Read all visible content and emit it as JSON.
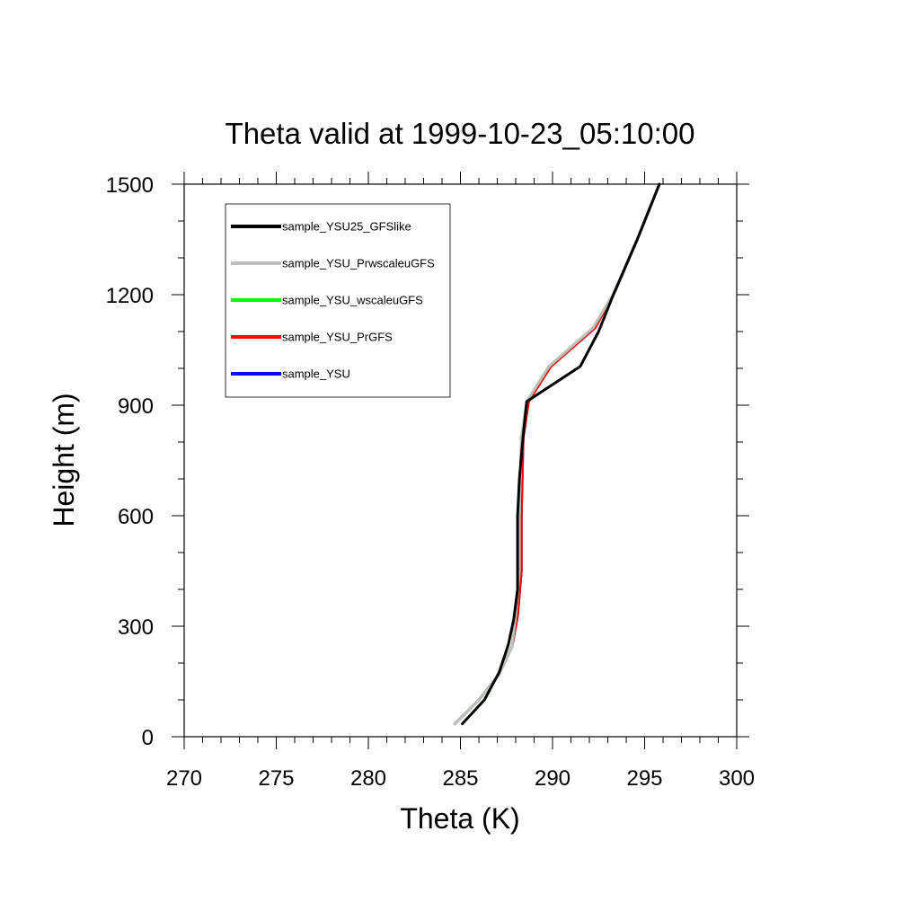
{
  "chart_data": {
    "type": "line",
    "title": "Theta valid at 1999-10-23_05:10:00",
    "xlabel": "Theta (K)",
    "ylabel": "Height (m)",
    "xlim": [
      270,
      300
    ],
    "ylim": [
      0,
      1500
    ],
    "x_ticks": [
      "270",
      "275",
      "280",
      "285",
      "290",
      "295",
      "300"
    ],
    "y_ticks": [
      "0",
      "300",
      "600",
      "900",
      "1200",
      "1500"
    ],
    "grid": false,
    "legend_position": "top-left",
    "series": [
      {
        "name": "sample_YSU",
        "color": "#0000ff",
        "x": [
          284.7,
          286.0,
          287.1,
          287.8,
          288.1,
          288.3,
          288.3,
          288.4,
          288.6,
          289.9,
          292.3,
          293.4,
          294.6,
          295.8
        ],
        "y": [
          35,
          100,
          170,
          245,
          330,
          450,
          600,
          810,
          910,
          1005,
          1110,
          1210,
          1350,
          1500
        ]
      },
      {
        "name": "sample_YSU_PrGFS",
        "color": "#ff0000",
        "x": [
          284.7,
          286.0,
          287.1,
          287.8,
          288.1,
          288.3,
          288.3,
          288.4,
          288.7,
          289.9,
          292.3,
          293.4,
          294.6,
          295.8
        ],
        "y": [
          35,
          100,
          170,
          245,
          330,
          450,
          600,
          810,
          910,
          1005,
          1110,
          1210,
          1350,
          1500
        ]
      },
      {
        "name": "sample_YSU_wscaleuGFS",
        "color": "#00ff00",
        "x": [
          284.7,
          286.0,
          287.1,
          287.8,
          288.0,
          288.2,
          288.2,
          288.3,
          288.6,
          289.8,
          292.2,
          293.4,
          294.6,
          295.8
        ],
        "y": [
          35,
          100,
          170,
          245,
          330,
          450,
          600,
          810,
          910,
          1005,
          1110,
          1210,
          1350,
          1500
        ]
      },
      {
        "name": "sample_YSU_PrwscaleuGFS",
        "color": "#bebebe",
        "x": [
          284.7,
          286.0,
          287.1,
          287.8,
          288.0,
          288.2,
          288.2,
          288.3,
          288.6,
          289.8,
          292.2,
          293.4,
          294.6,
          295.8
        ],
        "y": [
          35,
          100,
          170,
          245,
          330,
          450,
          600,
          810,
          910,
          1005,
          1110,
          1210,
          1350,
          1500
        ]
      },
      {
        "name": "sample_YSU25_GFSlike",
        "color": "#000000",
        "x": [
          285.1,
          286.3,
          287.1,
          287.6,
          287.9,
          288.1,
          288.1,
          288.2,
          288.4,
          288.6,
          291.5,
          292.5,
          293.3,
          294.6,
          295.8
        ],
        "y": [
          35,
          100,
          175,
          250,
          320,
          400,
          600,
          700,
          815,
          910,
          1005,
          1100,
          1200,
          1350,
          1500
        ]
      }
    ],
    "legend_order": [
      "sample_YSU25_GFSlike",
      "sample_YSU_PrwscaleuGFS",
      "sample_YSU_wscaleuGFS",
      "sample_YSU_PrGFS",
      "sample_YSU"
    ]
  }
}
